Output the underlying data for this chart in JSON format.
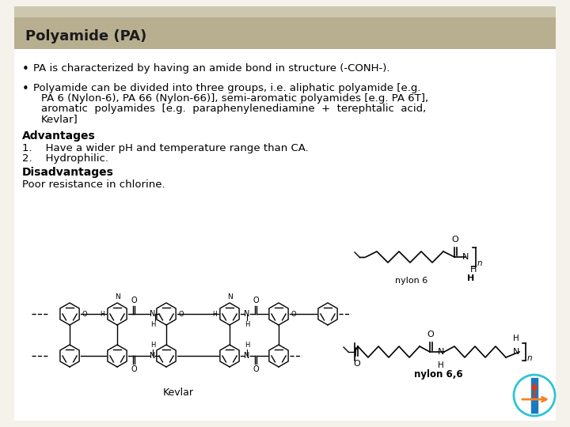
{
  "title": "Polyamide (PA)",
  "title_bg_color": "#b8ae90",
  "header_bg_color": "#cec7b0",
  "slide_bg_color": "#f5f2ec",
  "main_bg_color": "#ffffff",
  "text_color": "#1a1a1a",
  "bullet1": "PA is characterized by having an amide bond in structure (-CONH-).",
  "bullet2_line1": "Polyamide can be divided into three groups, i.e. aliphatic polyamide [e.g.",
  "bullet2_line2": "PA 6 (Nylon-6), PA 66 (Nylon-66)], semi-aromatic polyamides [e.g. PA 6T],",
  "bullet2_line3": "aromatic  polyamides  [e.g.  paraphenylenediamine  +  terephtalic  acid,",
  "bullet2_line4": "Kevlar]",
  "advantages_title": "Advantages",
  "adv1": "Have a wider pH and temperature range than CA.",
  "adv2": "Hydrophilic.",
  "disadvantages_title": "Disadvantages",
  "disadv1": "Poor resistance in chlorine.",
  "nylon6_label": "nylon 6",
  "nylon66_label": "nylon 6,6",
  "kevlar_label": "Kevlar",
  "font_size_body": 9.5,
  "font_size_title": 13,
  "font_size_bold": 10
}
